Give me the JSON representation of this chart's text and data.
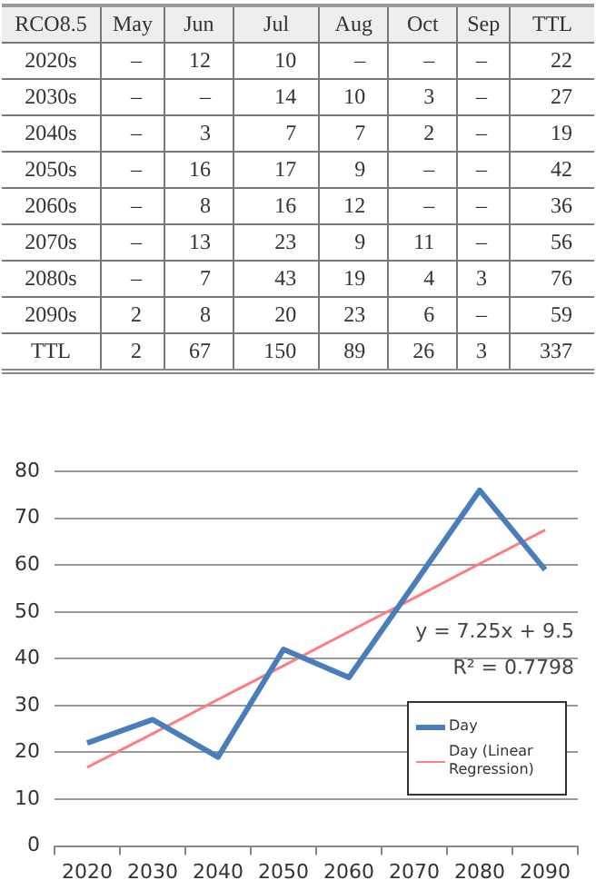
{
  "chart_data": [
    {
      "type": "heatmap",
      "ylabel": "RCO8.5",
      "categories": [
        "May",
        "Jun",
        "Jul",
        "Aug",
        "Oct",
        "Sep",
        "TTL"
      ],
      "y_categories": [
        "2020s",
        "2030s",
        "2040s",
        "2050s",
        "2060s",
        "2070s",
        "2080s",
        "2090s",
        "TTL"
      ],
      "cells": [
        [
          null,
          12,
          10,
          null,
          null,
          null,
          22
        ],
        [
          null,
          null,
          14,
          10,
          3,
          null,
          27
        ],
        [
          null,
          3,
          7,
          7,
          2,
          null,
          19
        ],
        [
          null,
          16,
          17,
          9,
          null,
          null,
          42
        ],
        [
          null,
          8,
          16,
          12,
          null,
          null,
          36
        ],
        [
          null,
          13,
          23,
          9,
          11,
          null,
          56
        ],
        [
          null,
          7,
          43,
          19,
          4,
          3,
          76
        ],
        [
          2,
          8,
          20,
          23,
          6,
          null,
          59
        ],
        [
          2,
          67,
          150,
          89,
          26,
          3,
          337
        ]
      ],
      "cell_labels": [
        [
          "–",
          "12",
          "10",
          "–",
          "–",
          "–",
          "22"
        ],
        [
          "–",
          "–",
          "14",
          "10",
          "3",
          "–",
          "27"
        ],
        [
          "–",
          "3",
          "7",
          "7",
          "2",
          "–",
          "19"
        ],
        [
          "–",
          "16",
          "17",
          "9",
          "–",
          "–",
          "42"
        ],
        [
          "–",
          "8",
          "16",
          "12",
          "–",
          "–",
          "36"
        ],
        [
          "–",
          "13",
          "23",
          "9",
          "11",
          "–",
          "56"
        ],
        [
          "–",
          "7",
          "43",
          "19",
          "4",
          "3",
          "76"
        ],
        [
          "2",
          "8",
          "20",
          "23",
          "6",
          "–",
          "59"
        ],
        [
          "2",
          "67",
          "150",
          "89",
          "26",
          "3",
          "337"
        ]
      ]
    },
    {
      "type": "line",
      "categories": [
        "2020",
        "2030",
        "2040",
        "2050",
        "2060",
        "2070",
        "2080",
        "2090"
      ],
      "series": [
        {
          "name": "Day",
          "color": "#4a7ebb",
          "values": [
            22,
            27,
            19,
            42,
            36,
            56,
            76,
            59
          ]
        },
        {
          "name": "Day (Linear Regression)",
          "color": "#ff7c80",
          "values": [
            16.8,
            24,
            31.3,
            38.5,
            45.8,
            53,
            60.3,
            67.5
          ]
        }
      ],
      "ylim": [
        0,
        80
      ],
      "yticks": [
        0,
        10,
        20,
        30,
        40,
        50,
        60,
        70,
        80
      ],
      "grid": "y",
      "legend": "bottom right",
      "marker": "none",
      "line_style": "solid",
      "annotations": [
        "y = 7.25x + 9.5",
        "R² = 0.7798"
      ]
    }
  ]
}
